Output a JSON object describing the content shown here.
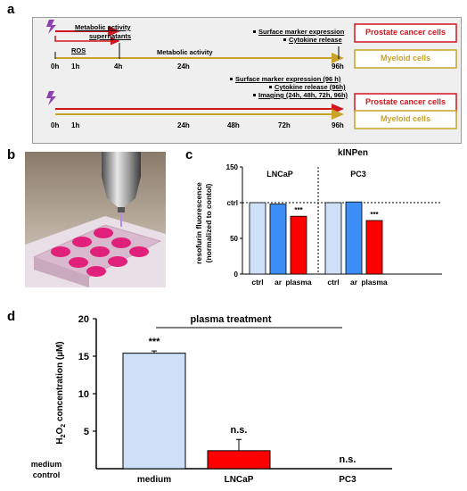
{
  "panel_a": {
    "label": "a",
    "timeline1": {
      "arrow_top": "Metabolic activity",
      "arrow_sub": "supernatants",
      "ros": "ROS",
      "mid": "Metabolic activity",
      "right1": "Surface marker expression",
      "right2": "Cytokine release",
      "ticks": [
        "0h",
        "1h",
        "4h",
        "24h",
        "96h"
      ]
    },
    "timeline2": {
      "right1": "Surface marker expression (96 h)",
      "right2": "Cytokine release (96h)",
      "right3": "Imaging (24h, 48h, 72h, 96h)",
      "ticks": [
        "0h",
        "1h",
        "24h",
        "48h",
        "72h",
        "96h"
      ]
    },
    "box_prostate": "Prostate cancer cells",
    "box_myeloid": "Myeloid cells",
    "colors": {
      "red": "#d2161e",
      "gold": "#c9a227",
      "plasma_icon": "#8e3fb0"
    }
  },
  "panel_b": {
    "label": "b"
  },
  "panel_c": {
    "label": "c",
    "chart_data": {
      "type": "bar",
      "title": "kINPen",
      "ylabel": "resofurin fluorescence (normalized to contol)",
      "ylim": [
        0,
        150
      ],
      "yticks": [
        "0",
        "50",
        "ctrl",
        "100",
        "150"
      ],
      "reference_line": 100,
      "groups": [
        {
          "name": "LNCaP",
          "categories": [
            "ctrl",
            "ar",
            "plasma"
          ],
          "values": [
            100,
            98,
            81
          ],
          "significance": [
            "",
            "",
            "***"
          ]
        },
        {
          "name": "PC3",
          "categories": [
            "ctrl",
            "ar",
            "plasma"
          ],
          "values": [
            100,
            101,
            75
          ],
          "significance": [
            "",
            "",
            "***"
          ]
        }
      ],
      "colors": {
        "ctrl": "#cde0f8",
        "ar": "#3d8ef7",
        "plasma": "#ff0000"
      }
    }
  },
  "panel_d": {
    "label": "d",
    "chart_data": {
      "type": "bar",
      "ylabel": "H2O2 concentration (µM)",
      "ylabel_parts": {
        "a": "H",
        "b": "2",
        "c": "O",
        "d": "2",
        "e": " concentration (µM)"
      },
      "ylim": [
        0,
        20
      ],
      "yticks": [
        "5",
        "10",
        "15",
        "20"
      ],
      "categories": [
        "medium",
        "LNCaP",
        "PC3"
      ],
      "values": [
        15.4,
        2.4,
        0
      ],
      "errors": [
        0.3,
        1.5,
        0
      ],
      "significance": [
        "***",
        "n.s.",
        "n.s."
      ],
      "bracket_label": "plasma treatment",
      "baseline_label": "medium control",
      "baseline_lines": [
        "medium",
        "control"
      ],
      "colors": {
        "medium": "#cde0f8",
        "LNCaP": "#ff0000",
        "PC3": "#ff0000"
      }
    }
  }
}
